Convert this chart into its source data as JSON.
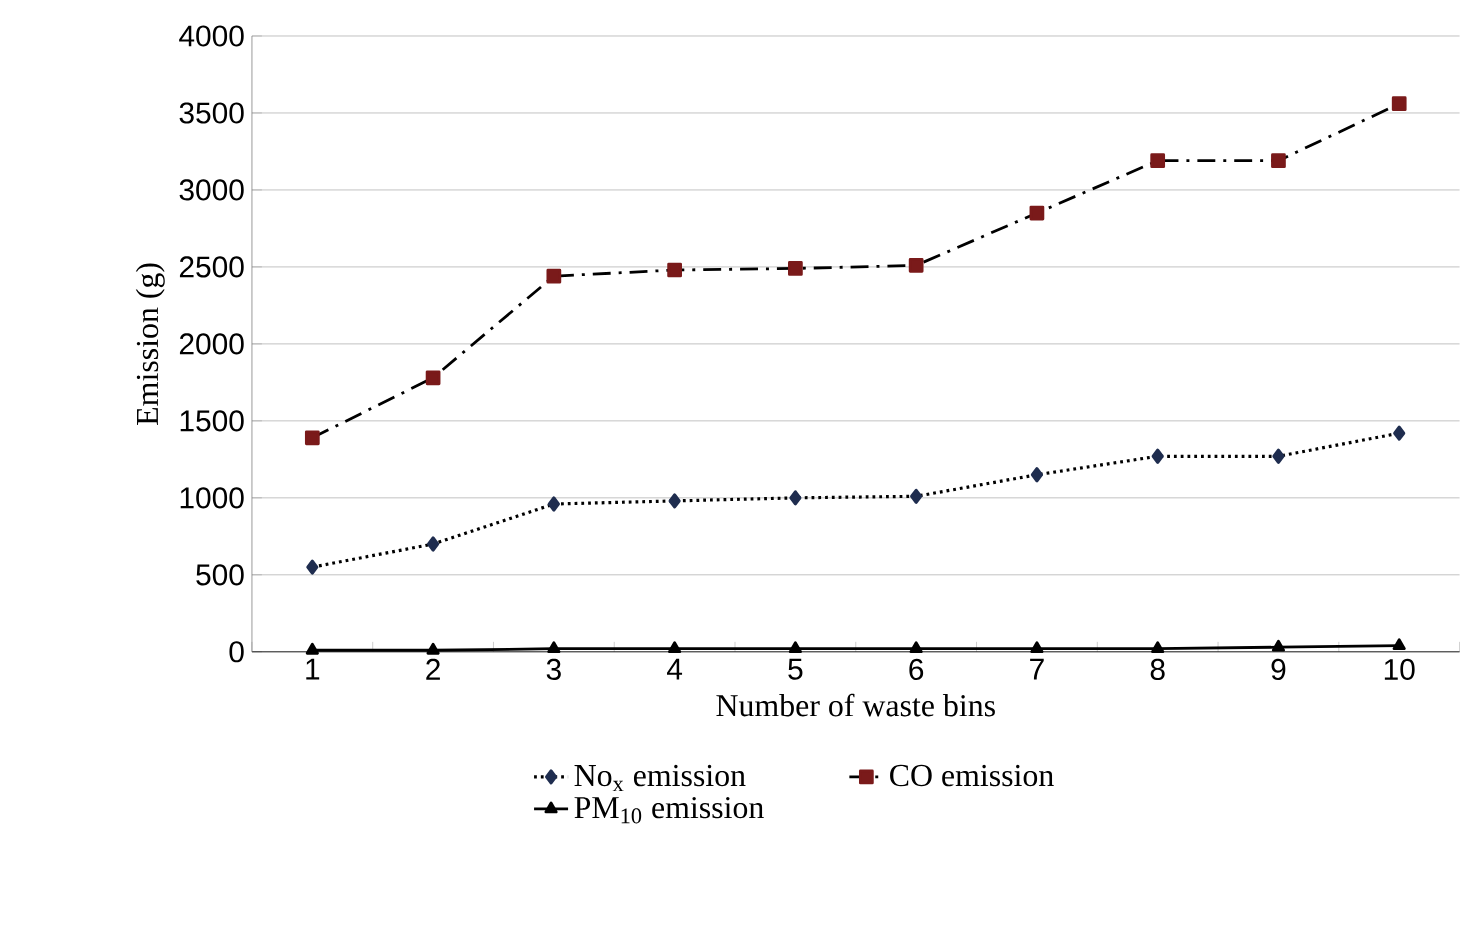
{
  "chart_data": {
    "type": "line",
    "xlabel": "Number of waste bins",
    "ylabel": "Emission (g)",
    "categories": [
      "1",
      "2",
      "3",
      "4",
      "5",
      "6",
      "7",
      "8",
      "9",
      "10"
    ],
    "ylim": [
      0,
      4000
    ],
    "yticks": [
      0,
      500,
      1000,
      1500,
      2000,
      2500,
      3000,
      3500,
      4000
    ],
    "grid": "y",
    "legend": "bottom",
    "series": [
      {
        "name": "No$_{x}$ emission",
        "color": "#1f2d4f",
        "marker": "diamond",
        "line_style": "dotted",
        "values": [
          550,
          700,
          960,
          980,
          1000,
          1010,
          1150,
          1270,
          1270,
          1420
        ]
      },
      {
        "name": "CO emission",
        "color": "#7a1a1a",
        "marker": "square",
        "line_style": "dashed",
        "values": [
          1390,
          1780,
          2440,
          2480,
          2490,
          2510,
          2850,
          3190,
          3190,
          3560
        ]
      },
      {
        "name": "PM$_{10}$ emission",
        "color": "#000000",
        "marker": "triangle",
        "line_style": "solid",
        "values": [
          10,
          10,
          20,
          20,
          20,
          20,
          20,
          20,
          30,
          40
        ]
      }
    ]
  }
}
